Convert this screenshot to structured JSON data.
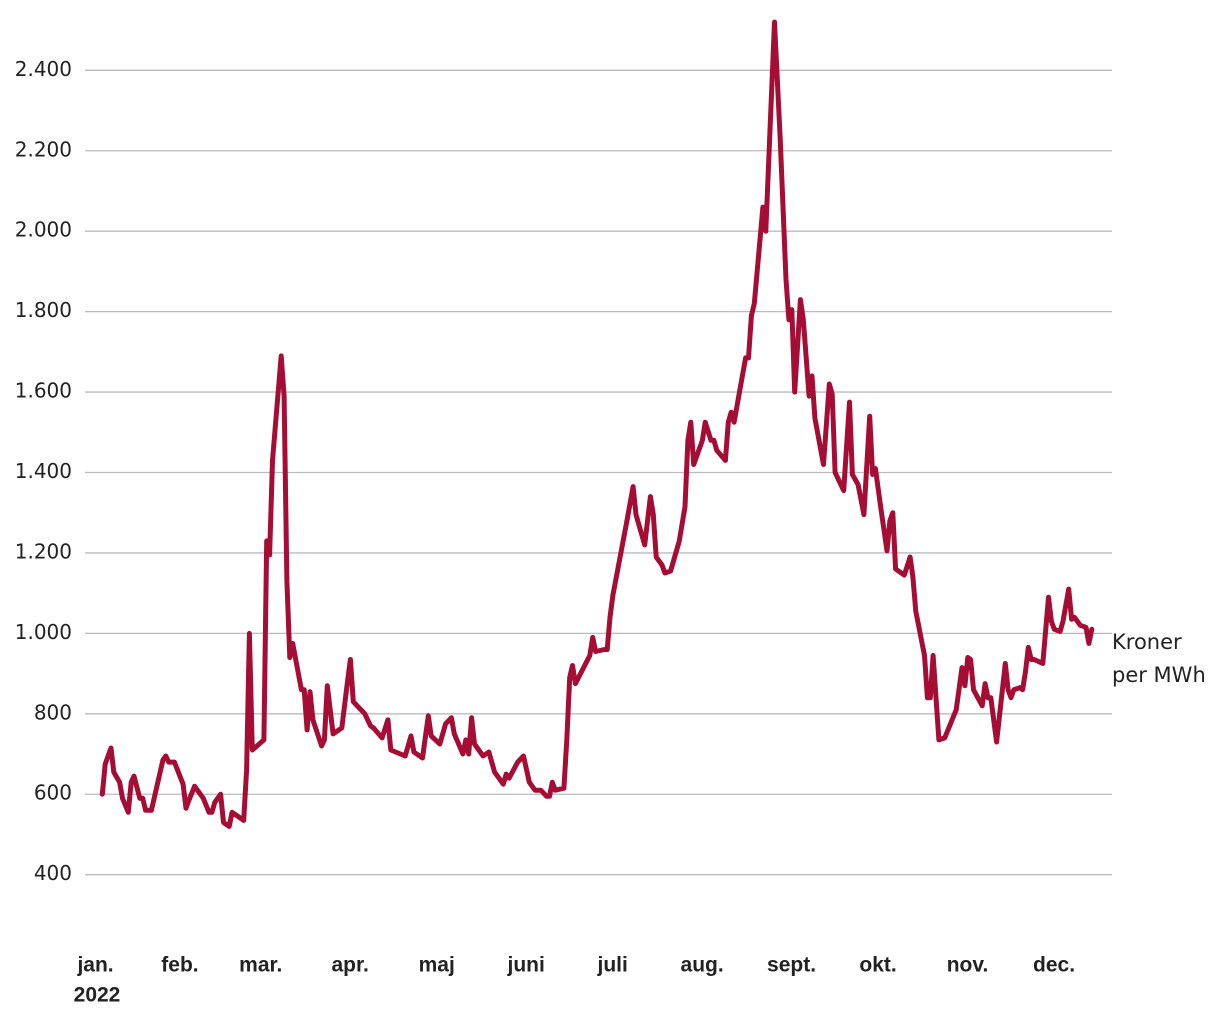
{
  "chart_data": {
    "type": "line",
    "color": "#a50d35",
    "annotation": "Kroner per MWh",
    "year": "2022",
    "grid": true,
    "xlim": [
      -4,
      352
    ],
    "ylim": [
      250,
      2550
    ],
    "yticks": [
      400,
      600,
      800,
      {
        "value": 1000,
        "label": "1.000"
      },
      {
        "value": 1200,
        "label": "1.200"
      },
      {
        "value": 1400,
        "label": "1.400"
      },
      {
        "value": 1600,
        "label": "1.600"
      },
      {
        "value": 1800,
        "label": "1.800"
      },
      {
        "value": 2000,
        "label": "2.000"
      },
      {
        "value": 2200,
        "label": "2.200"
      },
      {
        "value": 2400,
        "label": "2.400"
      }
    ],
    "xticks": [
      {
        "value": 0,
        "label": "jan."
      },
      {
        "value": 31,
        "label": "feb."
      },
      {
        "value": 59,
        "label": "mar."
      },
      {
        "value": 90,
        "label": "apr."
      },
      {
        "value": 120,
        "label": "maj"
      },
      {
        "value": 151,
        "label": "juni"
      },
      {
        "value": 181,
        "label": "juli"
      },
      {
        "value": 212,
        "label": "aug."
      },
      {
        "value": 243,
        "label": "sept."
      },
      {
        "value": 273,
        "label": "okt."
      },
      {
        "value": 304,
        "label": "nov."
      },
      {
        "value": 334,
        "label": "dec."
      }
    ],
    "x": [
      2,
      3,
      5,
      6,
      8,
      9,
      11,
      12,
      13,
      15,
      16,
      17,
      19,
      23,
      24,
      25,
      27,
      30,
      31,
      32,
      34,
      37,
      39,
      40,
      41,
      43,
      44,
      46,
      47,
      51,
      52,
      53,
      54,
      58,
      59,
      60,
      61,
      64,
      65,
      66,
      67,
      68,
      71,
      72,
      73,
      74,
      75,
      78,
      79,
      80,
      82,
      85,
      87,
      88,
      89,
      93,
      95,
      96,
      99,
      101,
      102,
      107,
      109,
      110,
      113,
      115,
      116,
      119,
      121,
      123,
      124,
      127,
      128,
      129,
      130,
      131,
      134,
      136,
      138,
      141,
      142,
      143,
      146,
      148,
      150,
      152,
      154,
      156,
      157,
      158,
      159,
      162,
      163,
      164,
      165,
      166,
      171,
      172,
      173,
      176,
      177,
      178,
      179,
      184,
      186,
      187,
      190,
      192,
      193,
      194,
      196,
      197,
      199,
      202,
      204,
      205,
      206,
      207,
      210,
      211,
      213,
      214,
      215,
      218,
      219,
      220,
      221,
      225,
      226,
      227,
      228,
      231,
      232,
      235,
      237,
      239,
      240,
      241,
      242,
      244,
      245,
      247,
      248,
      249,
      252,
      254,
      255,
      256,
      259,
      261,
      262,
      264,
      266,
      268,
      269,
      270,
      272,
      274,
      275,
      276,
      277,
      280,
      282,
      283,
      284,
      287,
      288,
      289,
      290,
      292,
      294,
      298,
      300,
      301,
      302,
      303,
      304,
      307,
      308,
      309,
      310,
      312,
      315,
      316,
      317,
      318,
      320,
      321,
      322,
      323,
      324,
      325,
      328,
      330,
      331,
      332,
      334,
      335,
      337,
      338,
      339,
      341,
      343,
      344,
      345
    ],
    "values": [
      600,
      675,
      715,
      655,
      630,
      590,
      555,
      630,
      645,
      590,
      590,
      560,
      560,
      685,
      695,
      680,
      680,
      625,
      565,
      585,
      620,
      590,
      555,
      555,
      580,
      600,
      530,
      520,
      555,
      535,
      660,
      1000,
      710,
      735,
      1230,
      1195,
      1430,
      1690,
      1590,
      1130,
      940,
      975,
      860,
      860,
      760,
      855,
      785,
      720,
      735,
      870,
      750,
      765,
      880,
      935,
      830,
      800,
      770,
      765,
      740,
      785,
      710,
      695,
      745,
      705,
      690,
      795,
      745,
      725,
      775,
      790,
      750,
      700,
      735,
      700,
      790,
      725,
      695,
      705,
      655,
      625,
      650,
      640,
      680,
      695,
      630,
      610,
      610,
      595,
      595,
      630,
      610,
      615,
      735,
      890,
      920,
      875,
      945,
      990,
      955,
      960,
      960,
      1040,
      1095,
      1285,
      1365,
      1295,
      1220,
      1340,
      1295,
      1190,
      1170,
      1150,
      1155,
      1230,
      1315,
      1480,
      1525,
      1420,
      1480,
      1525,
      1480,
      1480,
      1455,
      1430,
      1525,
      1550,
      1525,
      1685,
      1685,
      1790,
      1820,
      2060,
      2000,
      2520,
      2230,
      1880,
      1780,
      1805,
      1600,
      1830,
      1780,
      1590,
      1640,
      1535,
      1420,
      1620,
      1595,
      1400,
      1355,
      1575,
      1395,
      1370,
      1295,
      1540,
      1395,
      1410,
      1305,
      1205,
      1280,
      1300,
      1160,
      1145,
      1190,
      1140,
      1055,
      945,
      840,
      840,
      945,
      735,
      740,
      810,
      915,
      870,
      940,
      935,
      860,
      820,
      875,
      840,
      840,
      730,
      925,
      860,
      840,
      860,
      865,
      860,
      905,
      965,
      935,
      935,
      925,
      1090,
      1030,
      1010,
      1005,
      1030,
      1110,
      1035,
      1040,
      1020,
      1015,
      975,
      1010
    ]
  }
}
